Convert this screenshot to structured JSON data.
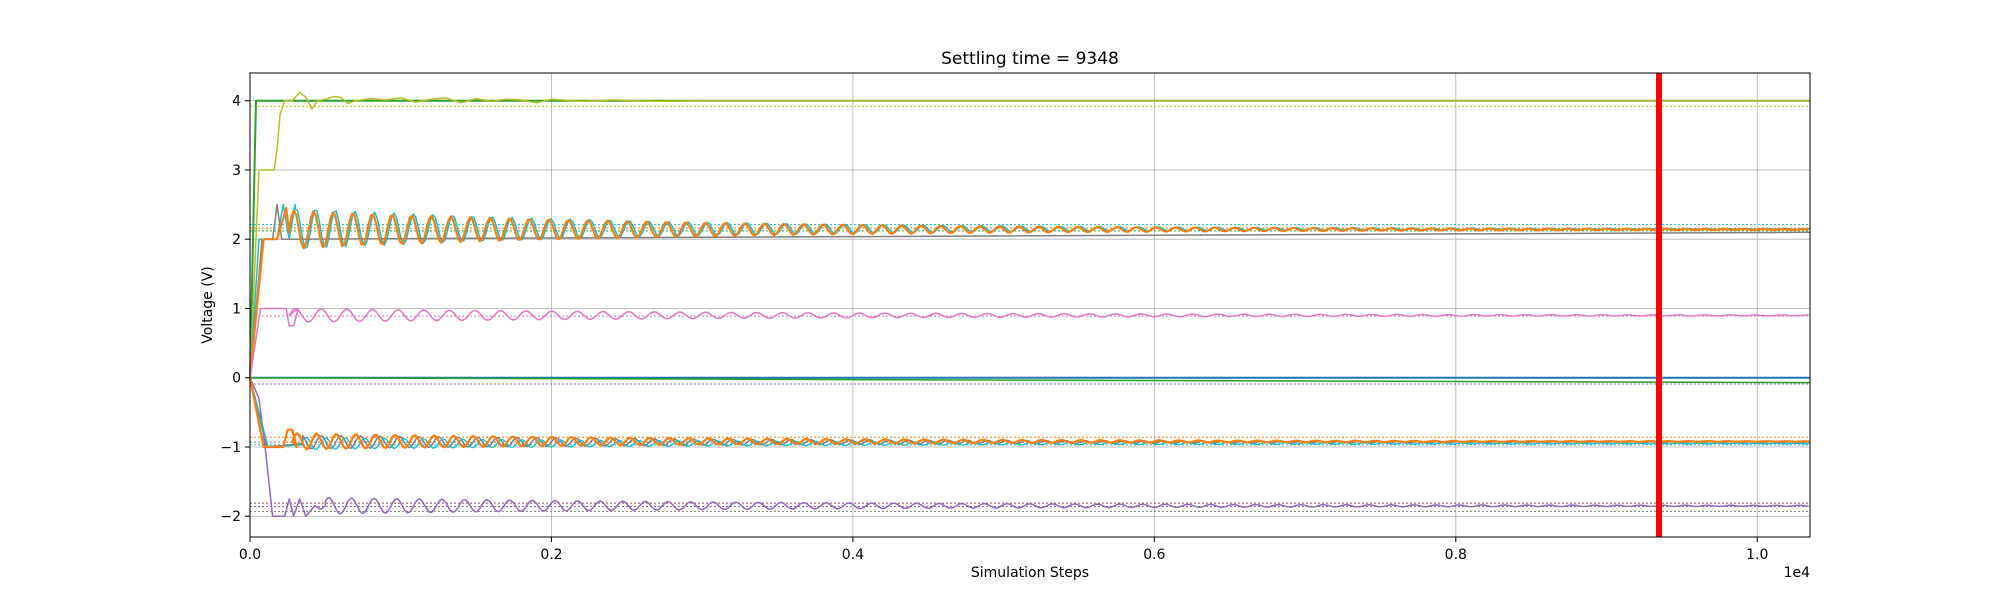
{
  "chart_data": {
    "type": "line",
    "title": "Settling time = 9348",
    "xlabel": "Simulation Steps",
    "ylabel": "Voltage (V)",
    "x_offset_label": "1e4",
    "xlim": [
      0,
      10350
    ],
    "ylim": [
      -2.3,
      4.4
    ],
    "x_ticks": [
      {
        "value": 0,
        "label": "0.0"
      },
      {
        "value": 2000,
        "label": "0.2"
      },
      {
        "value": 4000,
        "label": "0.4"
      },
      {
        "value": 6000,
        "label": "0.6"
      },
      {
        "value": 8000,
        "label": "0.8"
      },
      {
        "value": 10000,
        "label": "1.0"
      }
    ],
    "y_ticks": [
      {
        "value": -2,
        "label": "−2"
      },
      {
        "value": -1,
        "label": "−1"
      },
      {
        "value": 0,
        "label": "0"
      },
      {
        "value": 1,
        "label": "1"
      },
      {
        "value": 2,
        "label": "2"
      },
      {
        "value": 3,
        "label": "3"
      },
      {
        "value": 4,
        "label": "4"
      }
    ],
    "grid": true,
    "settling_time": 9348,
    "settling_line_color": "#ff0000",
    "reference_levels": [
      {
        "value": 3.92,
        "color": "#bcbd22"
      },
      {
        "value": 2.21,
        "color": "#17becf"
      },
      {
        "value": 2.16,
        "color": "#ff7f0e"
      },
      {
        "value": 2.12,
        "color": "#2ca02c"
      },
      {
        "value": 0.89,
        "color": "#e377c2"
      },
      {
        "value": -0.09,
        "color": "#9467bd"
      },
      {
        "value": -0.86,
        "color": "#ff7f0e"
      },
      {
        "value": -0.93,
        "color": "#7f7f7f"
      },
      {
        "value": -0.97,
        "color": "#17becf"
      },
      {
        "value": -1.81,
        "color": "#8c564b"
      },
      {
        "value": -1.86,
        "color": "#9467bd"
      },
      {
        "value": -1.93,
        "color": "#7f7f7f"
      }
    ],
    "series": [
      {
        "color": "#2ca02c",
        "width": 2,
        "points": [
          [
            0,
            0
          ],
          [
            40,
            4.0
          ],
          [
            10350,
            4.0
          ]
        ]
      },
      {
        "color": "#bcbd22",
        "width": 1.5,
        "points": [
          [
            0,
            0
          ],
          [
            60,
            3.0
          ],
          [
            150,
            3.0
          ],
          [
            160,
            3.0
          ],
          [
            180,
            3.3
          ],
          [
            200,
            3.8
          ],
          [
            230,
            4.0
          ],
          [
            280,
            4.0
          ],
          [
            330,
            4.12
          ],
          [
            370,
            4.05
          ],
          [
            410,
            3.88
          ],
          [
            450,
            4.0
          ],
          [
            500,
            4.02
          ],
          [
            560,
            4.06
          ],
          [
            600,
            4.05
          ],
          [
            650,
            3.96
          ],
          [
            700,
            4.0
          ],
          [
            800,
            4.03
          ],
          [
            900,
            4.01
          ],
          [
            1000,
            4.04
          ],
          [
            1100,
            3.98
          ],
          [
            1200,
            4.02
          ],
          [
            1300,
            4.04
          ],
          [
            1400,
            3.97
          ],
          [
            1500,
            4.03
          ],
          [
            1600,
            3.99
          ],
          [
            1700,
            4.02
          ],
          [
            1800,
            4.01
          ],
          [
            1900,
            3.97
          ],
          [
            2000,
            4.02
          ],
          [
            2200,
            3.99
          ],
          [
            2400,
            4.01
          ],
          [
            2700,
            3.99
          ],
          [
            3000,
            4.0
          ],
          [
            10350,
            4.0
          ]
        ]
      },
      {
        "color": "#17becf",
        "width": 1.5,
        "osc": {
          "center": 2.15,
          "amp0": 0.3,
          "decay": 0.00042,
          "period": 130,
          "t0": 300,
          "phase": 1.3
        },
        "points": [
          [
            0,
            0
          ],
          [
            60,
            2.0
          ],
          [
            180,
            2.0
          ],
          [
            220,
            2.5
          ],
          [
            260,
            2.0
          ],
          [
            300,
            2.5
          ]
        ]
      },
      {
        "color": "#7f7f7f",
        "width": 1.5,
        "points": [
          [
            0,
            0
          ],
          [
            80,
            2.0
          ],
          [
            150,
            2.0
          ],
          [
            180,
            2.5
          ],
          [
            210,
            2.0
          ],
          [
            10350,
            2.1
          ]
        ]
      },
      {
        "color": "#ff7f0e",
        "width": 2.2,
        "osc": {
          "center": 2.14,
          "amp0": 0.28,
          "decay": 0.00038,
          "period": 130,
          "t0": 260,
          "phase": 0
        },
        "points": [
          [
            0,
            0
          ],
          [
            90,
            2.0
          ],
          [
            180,
            2.0
          ],
          [
            240,
            2.45
          ],
          [
            260,
            2.1
          ]
        ]
      },
      {
        "color": "#e377c2",
        "width": 1.5,
        "osc": {
          "center": 0.9,
          "amp0": 0.1,
          "decay": 0.00028,
          "period": 170,
          "t0": 260,
          "phase": 0
        },
        "points": [
          [
            0,
            0
          ],
          [
            70,
            1.0
          ],
          [
            240,
            1.0
          ],
          [
            260,
            0.75
          ],
          [
            290,
            0.75
          ],
          [
            320,
            1.0
          ]
        ]
      },
      {
        "color": "#1f77b4",
        "width": 2,
        "points": [
          [
            0,
            0
          ],
          [
            10350,
            0
          ]
        ]
      },
      {
        "color": "#2ca02c",
        "width": 1.5,
        "points": [
          [
            0,
            0
          ],
          [
            10350,
            -0.07
          ]
        ]
      },
      {
        "color": "#9467bd",
        "width": 1.5,
        "osc": {
          "center": -1.85,
          "amp0": 0.12,
          "decay": 0.0003,
          "period": 150,
          "t0": 500,
          "phase": 0.6
        },
        "points": [
          [
            0,
            0
          ],
          [
            60,
            -0.3
          ],
          [
            100,
            -1.0
          ],
          [
            150,
            -2.0
          ],
          [
            230,
            -2.0
          ],
          [
            260,
            -1.75
          ],
          [
            290,
            -2.0
          ],
          [
            330,
            -1.75
          ],
          [
            370,
            -2.0
          ],
          [
            430,
            -1.85
          ],
          [
            470,
            -1.9
          ],
          [
            500,
            -1.85
          ]
        ]
      },
      {
        "color": "#7f7f7f",
        "width": 1.5,
        "osc": {
          "center": -0.93,
          "amp0": 0.1,
          "decay": 0.0003,
          "period": 130,
          "t0": 350,
          "phase": 2.0
        },
        "points": [
          [
            0,
            0
          ],
          [
            110,
            -1.0
          ],
          [
            350,
            -0.95
          ]
        ]
      },
      {
        "color": "#17becf",
        "width": 1.3,
        "osc": {
          "center": -0.95,
          "amp0": 0.09,
          "decay": 0.00032,
          "period": 130,
          "t0": 350,
          "phase": 0.5
        },
        "points": [
          [
            0,
            0
          ],
          [
            120,
            -1.0
          ],
          [
            350,
            -0.97
          ]
        ]
      },
      {
        "color": "#ff7f0e",
        "width": 2.2,
        "osc": {
          "center": -0.92,
          "amp0": 0.12,
          "decay": 0.00035,
          "period": 130,
          "t0": 280,
          "phase": 0
        },
        "points": [
          [
            0,
            0
          ],
          [
            90,
            -1.0
          ],
          [
            220,
            -1.0
          ],
          [
            250,
            -0.75
          ],
          [
            280,
            -0.75
          ],
          [
            310,
            -1.0
          ]
        ]
      }
    ]
  }
}
